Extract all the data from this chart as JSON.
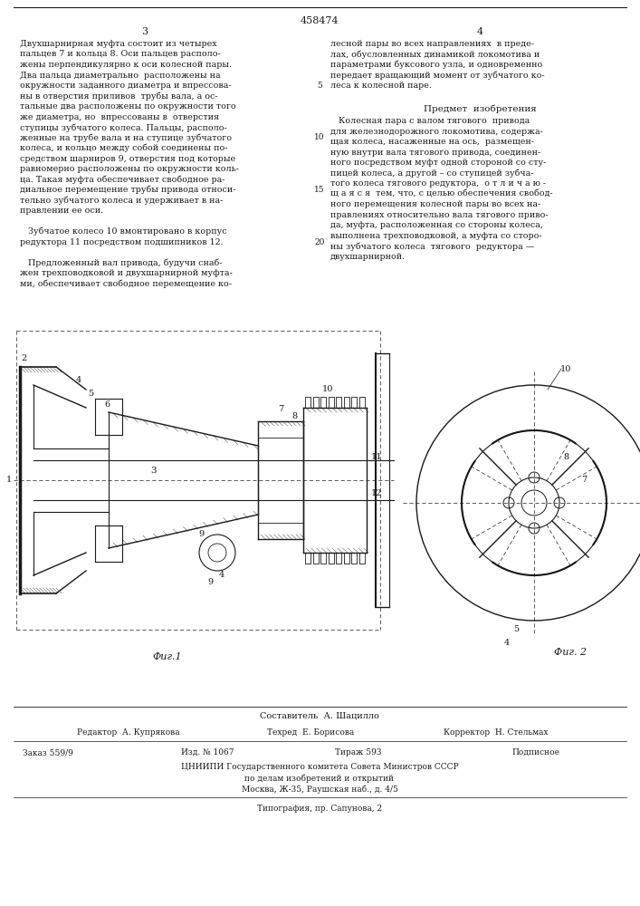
{
  "patent_number": "458474",
  "page_left": "3",
  "page_right": "4",
  "background_color": "#ffffff",
  "paper_color": "#f5f3ef",
  "text_color": "#1a1a1a",
  "left_column_lines": [
    "Двухшарнирная муфта состоит из четырех",
    "пальцев 7 и кольца 8. Оси пальцев располо-",
    "жены перпендикулярно к оси колесной пары.",
    "Два пальца диаметрально  расположены на",
    "окружности заданного диаметра и впрессова-",
    "ны в отверстия приливов  трубы вала, а ос-",
    "тальные два расположены по окружности того",
    "же диаметра, но  впрессованы в  отверстия",
    "ступицы зубчатого колеса. Пальцы, располо-",
    "женные на трубе вала и на ступице зубчатого",
    "колеса, и кольцо между собой соединены по-",
    "средством шарниров 9, отверстия под которые",
    "равномерно расположены по окружности коль-",
    "ца. Такая муфта обеспечивает свободное ра-",
    "диальное перемещение трубы привода относи-",
    "тельно зубчатого колеса и удерживает в на-",
    "правлении ее оси.",
    "",
    "   Зубчатое колесо 10 вмонтировано в корпус",
    "редуктора 11 посредством подшипников 12.",
    "",
    "   Предложенный вал привода, будучи снаб-",
    "жен трехповодковой и двухшарнирной муфта-",
    "ми, обеспечивает свободное перемещение ко-"
  ],
  "right_column_lines_top": [
    "лесной пары во всех направлениях  в преде-",
    "лах, обусловленных динамикой локомотива и",
    "параметрами буксового узла, и одновременно",
    "передает вращающий момент от зубчатого ко-",
    "леса к колесной паре."
  ],
  "predmet_title": "Предмет  изобретения",
  "predmet_lines": [
    "   Колесная пара с валом тягового  привода",
    "для железнодорожного локомотива, содержа-",
    "щая колеса, насаженные на ось,  размещен-",
    "ную внутри вала тягового привода, соединен-",
    "ного посредством муфт одной стороной со сту-",
    "пицей колеса, а другой – со ступицей зубча-",
    "того колеса тягового редуктора,  о т л и ч а ю -",
    "щ а я с я  тем, что, с целью обеспечения свобод-",
    "ного перемещения колесной пары во всех на-",
    "правлениях относительно вала тягового приво-",
    "да, муфта, расположенная со стороны колеса,",
    "выполнена трехповодковой, а муфта со сторо-",
    "ны зубчатого колеса  тягового  редуктора —",
    "двухшарнирной."
  ],
  "fig1_label": "Фиг.1",
  "fig2_label": "Фиг. 2",
  "composer": "Составитель  А. Шацилло",
  "editor": "Редактор  А. Купрякова",
  "tech": "Техред  Е. Борисова",
  "corrector": "Корректор  Н. Стельмах",
  "order": "Заказ 559/9",
  "izd": "Изд. № 1067",
  "tirazh": "Тираж 593",
  "podpisnoe": "Подписное",
  "org_line1": "ЦНИИПИ Государственного комитета Совета Министров СССР",
  "org_line2": "по делам изобретений и открытий",
  "org_line3": "Москва, Ж-35, Раушская наб., д. 4/5",
  "print_line": "Типография, пр. Сапунова, 2"
}
